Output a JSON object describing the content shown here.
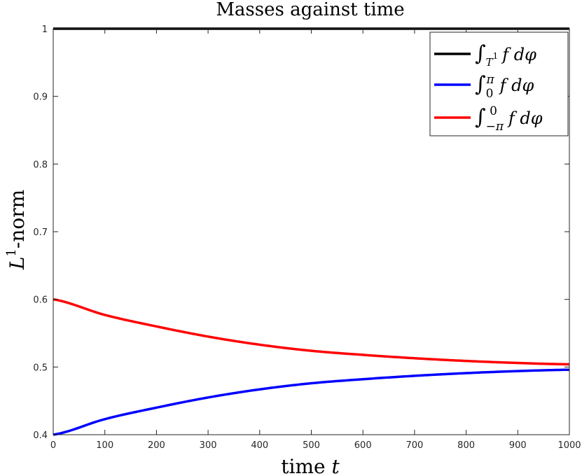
{
  "chart_data": {
    "type": "line",
    "title": "Masses against time",
    "xlabel": "time t",
    "ylabel": "L1-norm",
    "xlim": [
      0,
      1000
    ],
    "ylim": [
      0.4,
      1
    ],
    "xticks": [
      0,
      100,
      200,
      300,
      400,
      500,
      600,
      700,
      800,
      900,
      1000
    ],
    "yticks": [
      0.4,
      0.5,
      0.6,
      0.7,
      0.8,
      0.9,
      1
    ],
    "legend_position": "top-right",
    "grid": false,
    "series": [
      {
        "name": "∫T1 f dφ",
        "color": "#000000",
        "x": [
          0,
          100,
          200,
          300,
          400,
          500,
          600,
          700,
          800,
          900,
          1000
        ],
        "y": [
          1,
          1,
          1,
          1,
          1,
          1,
          1,
          1,
          1,
          1,
          1
        ]
      },
      {
        "name": "∫0π f dφ",
        "color": "#0000ff",
        "x": [
          0,
          100,
          200,
          300,
          400,
          500,
          600,
          700,
          800,
          900,
          1000
        ],
        "y": [
          0.4,
          0.423,
          0.44,
          0.455,
          0.467,
          0.476,
          0.482,
          0.487,
          0.491,
          0.494,
          0.496
        ]
      },
      {
        "name": "∫−π0 f dφ",
        "color": "#ff0000",
        "x": [
          0,
          100,
          200,
          300,
          400,
          500,
          600,
          700,
          800,
          900,
          1000
        ],
        "y": [
          0.6,
          0.577,
          0.56,
          0.545,
          0.533,
          0.524,
          0.518,
          0.513,
          0.509,
          0.506,
          0.504
        ]
      }
    ]
  }
}
